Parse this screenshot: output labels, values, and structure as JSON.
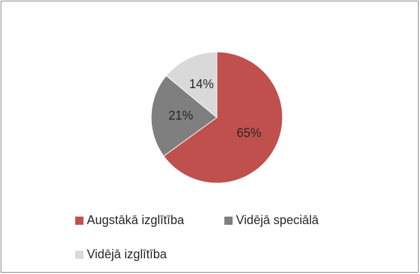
{
  "chart_data": {
    "type": "pie",
    "categories": [
      "Augstākā izglītība",
      "Vidējā speciālā",
      "Vidējā izglītība"
    ],
    "values": [
      65,
      21,
      14
    ],
    "value_labels": [
      "65%",
      "21%",
      "14%"
    ],
    "colors": [
      "#c0504d",
      "#7f7f7f",
      "#d9d9d9"
    ],
    "legend": "bottom"
  }
}
